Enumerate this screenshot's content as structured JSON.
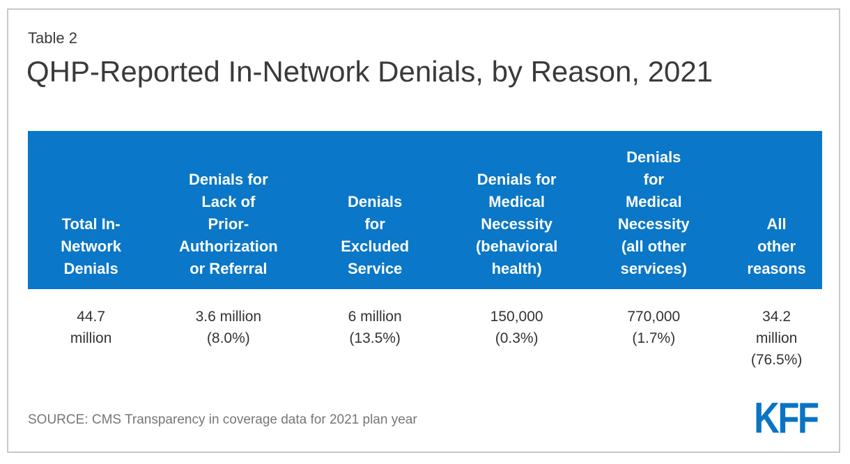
{
  "card": {
    "label": "Table 2",
    "title": "QHP-Reported In-Network Denials, by Reason, 2021"
  },
  "table": {
    "headers": [
      {
        "id": "total-in-network-denials",
        "label": "Total In-\nNetwork\nDenials"
      },
      {
        "id": "lack-of-prior-authorization",
        "label": "Denials for\nLack of\nPrior-\nAuthorization\nor Referral"
      },
      {
        "id": "excluded-service",
        "label": "Denials\nfor\nExcluded\nService"
      },
      {
        "id": "medical-necessity-behavioral",
        "label": "Denials for\nMedical\nNecessity\n(behavioral\nhealth)"
      },
      {
        "id": "medical-necessity-other",
        "label": "Denials\nfor\nMedical\nNecessity\n(all other\nservices)"
      },
      {
        "id": "all-other-reasons",
        "label": "All\nother\nreasons"
      }
    ],
    "row": [
      {
        "value": "44.7\nmillion"
      },
      {
        "value": "3.6 million\n(8.0%)"
      },
      {
        "value": "6 million\n(13.5%)"
      },
      {
        "value": "150,000\n(0.3%)"
      },
      {
        "value": "770,000\n(1.7%)"
      },
      {
        "value": "34.2\nmillion\n(76.5%)"
      }
    ]
  },
  "footer": {
    "source": "SOURCE: CMS Transparency in coverage data for 2021 plan year",
    "logo": "KFF"
  },
  "colors": {
    "header_blue": "#0a77c8",
    "logo_blue": "#0a74c4",
    "title_text": "#3a3a3a",
    "data_text": "#333333",
    "source_gray": "#767676",
    "card_border": "#c8c8c8"
  },
  "chart_data": {
    "type": "table",
    "table_label": "Table 2",
    "title": "QHP-Reported In-Network Denials, by Reason, 2021",
    "columns": [
      "Total In-Network Denials",
      "Denials for Lack of Prior-Authorization or Referral",
      "Denials for Excluded Service",
      "Denials for Medical Necessity (behavioral health)",
      "Denials for Medical Necessity (all other services)",
      "All other reasons"
    ],
    "rows": [
      [
        "44.7 million",
        "3.6 million (8.0%)",
        "6 million (13.5%)",
        "150,000 (0.3%)",
        "770,000 (1.7%)",
        "34.2 million (76.5%)"
      ]
    ],
    "values": [
      {
        "column": "Total In-Network Denials",
        "count": 44700000,
        "percent": null
      },
      {
        "column": "Denials for Lack of Prior-Authorization or Referral",
        "count": 3600000,
        "percent": 8.0
      },
      {
        "column": "Denials for Excluded Service",
        "count": 6000000,
        "percent": 13.5
      },
      {
        "column": "Denials for Medical Necessity (behavioral health)",
        "count": 150000,
        "percent": 0.3
      },
      {
        "column": "Denials for Medical Necessity (all other services)",
        "count": 770000,
        "percent": 1.7
      },
      {
        "column": "All other reasons",
        "count": 34200000,
        "percent": 76.5
      }
    ],
    "source": "SOURCE: CMS Transparency in coverage data for 2021 plan year"
  }
}
